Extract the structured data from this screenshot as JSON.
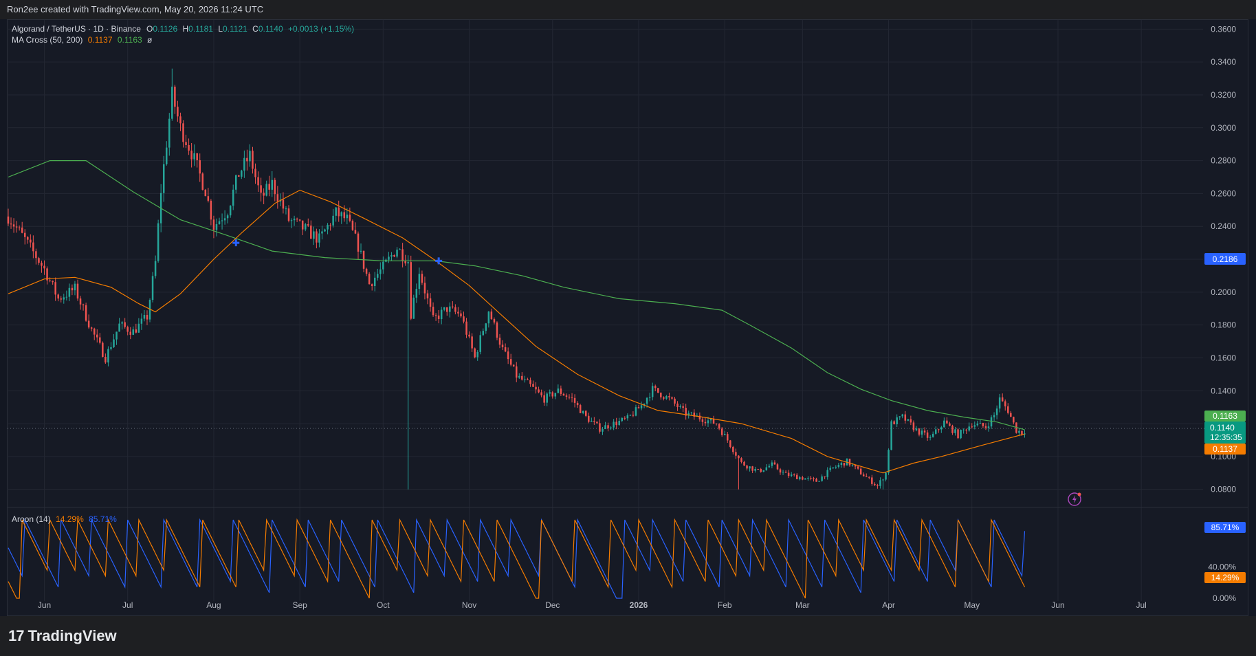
{
  "credit": "Ron2ee created with TradingView.com, May 20, 2026 11:24 UTC",
  "logo_text": "TradingView",
  "legend": {
    "symbol": "Algorand / TetherUS · 1D · Binance",
    "o_label": "O",
    "o_value": "0.1126",
    "h_label": "H",
    "h_value": "0.1181",
    "l_label": "L",
    "l_value": "0.1121",
    "c_label": "C",
    "c_value": "0.1140",
    "change": "+0.0013 (+1.15%)",
    "ma_label": "MA Cross (50, 200)",
    "ma_fast_value": "0.1137",
    "ma_slow_value": "0.1163",
    "ma_extra": "ø",
    "aroon_label": "Aroon (14)",
    "aroon_down_value": "14.29%",
    "aroon_up_value": "85.71%"
  },
  "price_badges": {
    "cross_level": "0.2186",
    "ma_slow": "0.1163",
    "last_price": "0.1140",
    "countdown": "12:35:35",
    "ma_fast": "0.1137",
    "aroon_up": "85.71%",
    "aroon_down": "14.29%"
  },
  "colors": {
    "background": "#161a25",
    "up_candle": "#26a69a",
    "down_candle": "#ef5350",
    "ma_fast": "#f57c00",
    "ma_slow": "#4caf50",
    "aroon_up": "#2962ff",
    "aroon_down": "#f57c00",
    "cross_marker": "#2962ff"
  },
  "chart_data": [
    {
      "type": "candlestick",
      "title": "Algorand / TetherUS · 1D · Binance",
      "y_ticks": [
        "0.3600",
        "0.3400",
        "0.3200",
        "0.3000",
        "0.2800",
        "0.2600",
        "0.2400",
        "0.2200",
        "0.2000",
        "0.1800",
        "0.1600",
        "0.1400",
        "0.1200",
        "0.1000",
        "0.0800"
      ],
      "ylim": [
        0.069,
        0.366
      ],
      "x_ticks": [
        "Jun",
        "Jul",
        "Aug",
        "Sep",
        "Oct",
        "Nov",
        "Dec",
        "2026",
        "Feb",
        "Mar",
        "Apr",
        "May",
        "Jun",
        "Jul"
      ],
      "grid": true,
      "close_path": [
        [
          "2025-05-19",
          0.246
        ],
        [
          "2025-05-25",
          0.232
        ],
        [
          "2025-06-01",
          0.214
        ],
        [
          "2025-06-06",
          0.196
        ],
        [
          "2025-06-12",
          0.202
        ],
        [
          "2025-06-18",
          0.177
        ],
        [
          "2025-06-23",
          0.16
        ],
        [
          "2025-06-28",
          0.18
        ],
        [
          "2025-07-03",
          0.176
        ],
        [
          "2025-07-08",
          0.185
        ],
        [
          "2025-07-11",
          0.218
        ],
        [
          "2025-07-13",
          0.262
        ],
        [
          "2025-07-17",
          0.32
        ],
        [
          "2025-07-20",
          0.3
        ],
        [
          "2025-07-24",
          0.285
        ],
        [
          "2025-07-29",
          0.262
        ],
        [
          "2025-08-01",
          0.24
        ],
        [
          "2025-08-06",
          0.25
        ],
        [
          "2025-08-10",
          0.272
        ],
        [
          "2025-08-14",
          0.283
        ],
        [
          "2025-08-18",
          0.257
        ],
        [
          "2025-08-22",
          0.266
        ],
        [
          "2025-08-28",
          0.244
        ],
        [
          "2025-09-03",
          0.238
        ],
        [
          "2025-09-08",
          0.232
        ],
        [
          "2025-09-14",
          0.248
        ],
        [
          "2025-09-18",
          0.244
        ],
        [
          "2025-09-22",
          0.228
        ],
        [
          "2025-09-26",
          0.205
        ],
        [
          "2025-10-01",
          0.215
        ],
        [
          "2025-10-06",
          0.227
        ],
        [
          "2025-10-10",
          0.219
        ],
        [
          "2025-10-11",
          0.187
        ],
        [
          "2025-10-14",
          0.213
        ],
        [
          "2025-10-19",
          0.183
        ],
        [
          "2025-10-24",
          0.19
        ],
        [
          "2025-10-29",
          0.186
        ],
        [
          "2025-11-03",
          0.16
        ],
        [
          "2025-11-08",
          0.189
        ],
        [
          "2025-11-13",
          0.165
        ],
        [
          "2025-11-18",
          0.149
        ],
        [
          "2025-11-23",
          0.143
        ],
        [
          "2025-11-28",
          0.135
        ],
        [
          "2025-12-03",
          0.14
        ],
        [
          "2025-12-08",
          0.135
        ],
        [
          "2025-12-13",
          0.124
        ],
        [
          "2025-12-18",
          0.117
        ],
        [
          "2025-12-23",
          0.12
        ],
        [
          "2025-12-28",
          0.123
        ],
        [
          "2026-01-02",
          0.131
        ],
        [
          "2026-01-06",
          0.141
        ],
        [
          "2026-01-12",
          0.135
        ],
        [
          "2026-01-18",
          0.126
        ],
        [
          "2026-01-24",
          0.123
        ],
        [
          "2026-01-29",
          0.12
        ],
        [
          "2026-02-02",
          0.11
        ],
        [
          "2026-02-07",
          0.096
        ],
        [
          "2026-02-13",
          0.091
        ],
        [
          "2026-02-18",
          0.095
        ],
        [
          "2026-02-23",
          0.089
        ],
        [
          "2026-03-01",
          0.087
        ],
        [
          "2026-03-06",
          0.085
        ],
        [
          "2026-03-12",
          0.093
        ],
        [
          "2026-03-17",
          0.097
        ],
        [
          "2026-03-22",
          0.09
        ],
        [
          "2026-03-28",
          0.082
        ],
        [
          "2026-03-31",
          0.09
        ],
        [
          "2026-04-02",
          0.12
        ],
        [
          "2026-04-06",
          0.124
        ],
        [
          "2026-04-11",
          0.116
        ],
        [
          "2026-04-16",
          0.111
        ],
        [
          "2026-04-21",
          0.121
        ],
        [
          "2026-04-26",
          0.113
        ],
        [
          "2026-05-01",
          0.12
        ],
        [
          "2026-05-06",
          0.118
        ],
        [
          "2026-05-09",
          0.125
        ],
        [
          "2026-05-11",
          0.135
        ],
        [
          "2026-05-14",
          0.128
        ],
        [
          "2026-05-17",
          0.116
        ],
        [
          "2026-05-20",
          0.114
        ]
      ],
      "wick_extremes": [
        [
          "2025-07-17",
          0.336
        ],
        [
          "2025-10-10",
          0.08
        ],
        [
          "2026-02-06",
          0.08
        ],
        [
          "2026-03-30",
          0.08
        ],
        [
          "2026-05-11",
          0.137
        ]
      ],
      "series": [
        {
          "name": "MA 50",
          "color": "#f57c00",
          "values": [
            [
              "2025-05-19",
              0.199
            ],
            [
              "2025-06-01",
              0.208
            ],
            [
              "2025-06-12",
              0.209
            ],
            [
              "2025-06-25",
              0.203
            ],
            [
              "2025-07-05",
              0.193
            ],
            [
              "2025-07-11",
              0.188
            ],
            [
              "2025-07-20",
              0.199
            ],
            [
              "2025-08-01",
              0.22
            ],
            [
              "2025-08-11",
              0.236
            ],
            [
              "2025-08-23",
              0.254
            ],
            [
              "2025-09-01",
              0.262
            ],
            [
              "2025-09-12",
              0.255
            ],
            [
              "2025-09-24",
              0.245
            ],
            [
              "2025-10-08",
              0.233
            ],
            [
              "2025-10-20",
              0.219
            ],
            [
              "2025-11-01",
              0.204
            ],
            [
              "2025-11-12",
              0.187
            ],
            [
              "2025-11-25",
              0.167
            ],
            [
              "2025-12-10",
              0.15
            ],
            [
              "2025-12-25",
              0.137
            ],
            [
              "2026-01-08",
              0.128
            ],
            [
              "2026-01-24",
              0.124
            ],
            [
              "2026-02-07",
              0.12
            ],
            [
              "2026-02-25",
              0.111
            ],
            [
              "2026-03-10",
              0.1
            ],
            [
              "2026-03-20",
              0.095
            ],
            [
              "2026-03-30",
              0.09
            ],
            [
              "2026-04-10",
              0.096
            ],
            [
              "2026-04-20",
              0.1
            ],
            [
              "2026-05-05",
              0.107
            ],
            [
              "2026-05-20",
              0.1137
            ]
          ]
        },
        {
          "name": "MA 200",
          "color": "#4caf50",
          "values": [
            [
              "2025-05-19",
              0.27
            ],
            [
              "2025-06-03",
              0.28
            ],
            [
              "2025-06-16",
              0.28
            ],
            [
              "2025-07-03",
              0.261
            ],
            [
              "2025-07-20",
              0.244
            ],
            [
              "2025-08-05",
              0.235
            ],
            [
              "2025-08-22",
              0.225
            ],
            [
              "2025-09-10",
              0.221
            ],
            [
              "2025-10-01",
              0.219
            ],
            [
              "2025-10-20",
              0.219
            ],
            [
              "2025-11-03",
              0.216
            ],
            [
              "2025-11-20",
              0.21
            ],
            [
              "2025-12-05",
              0.203
            ],
            [
              "2025-12-25",
              0.196
            ],
            [
              "2026-01-14",
              0.193
            ],
            [
              "2026-01-31",
              0.189
            ],
            [
              "2026-02-10",
              0.18
            ],
            [
              "2026-02-25",
              0.166
            ],
            [
              "2026-03-10",
              0.151
            ],
            [
              "2026-03-22",
              0.141
            ],
            [
              "2026-04-02",
              0.134
            ],
            [
              "2026-04-15",
              0.128
            ],
            [
              "2026-04-28",
              0.124
            ],
            [
              "2026-05-10",
              0.121
            ],
            [
              "2026-05-20",
              0.1163
            ]
          ]
        }
      ],
      "cross_markers": [
        [
          "2025-08-09",
          0.23
        ],
        [
          "2025-10-21",
          0.219
        ]
      ],
      "last_price": 0.114,
      "cross_level_price": 0.2186
    },
    {
      "type": "line",
      "title": "Aroon (14)",
      "y_ticks": [
        "40.00%",
        "0.00%"
      ],
      "ylim": [
        0,
        100
      ],
      "series": [
        {
          "name": "Aroon Up",
          "color": "#2962ff",
          "pattern_note": "sawtooth from 100 to 0",
          "last": 85.71
        },
        {
          "name": "Aroon Down",
          "color": "#f57c00",
          "pattern_note": "sawtooth from 100 to 0",
          "last": 14.29
        }
      ]
    }
  ]
}
